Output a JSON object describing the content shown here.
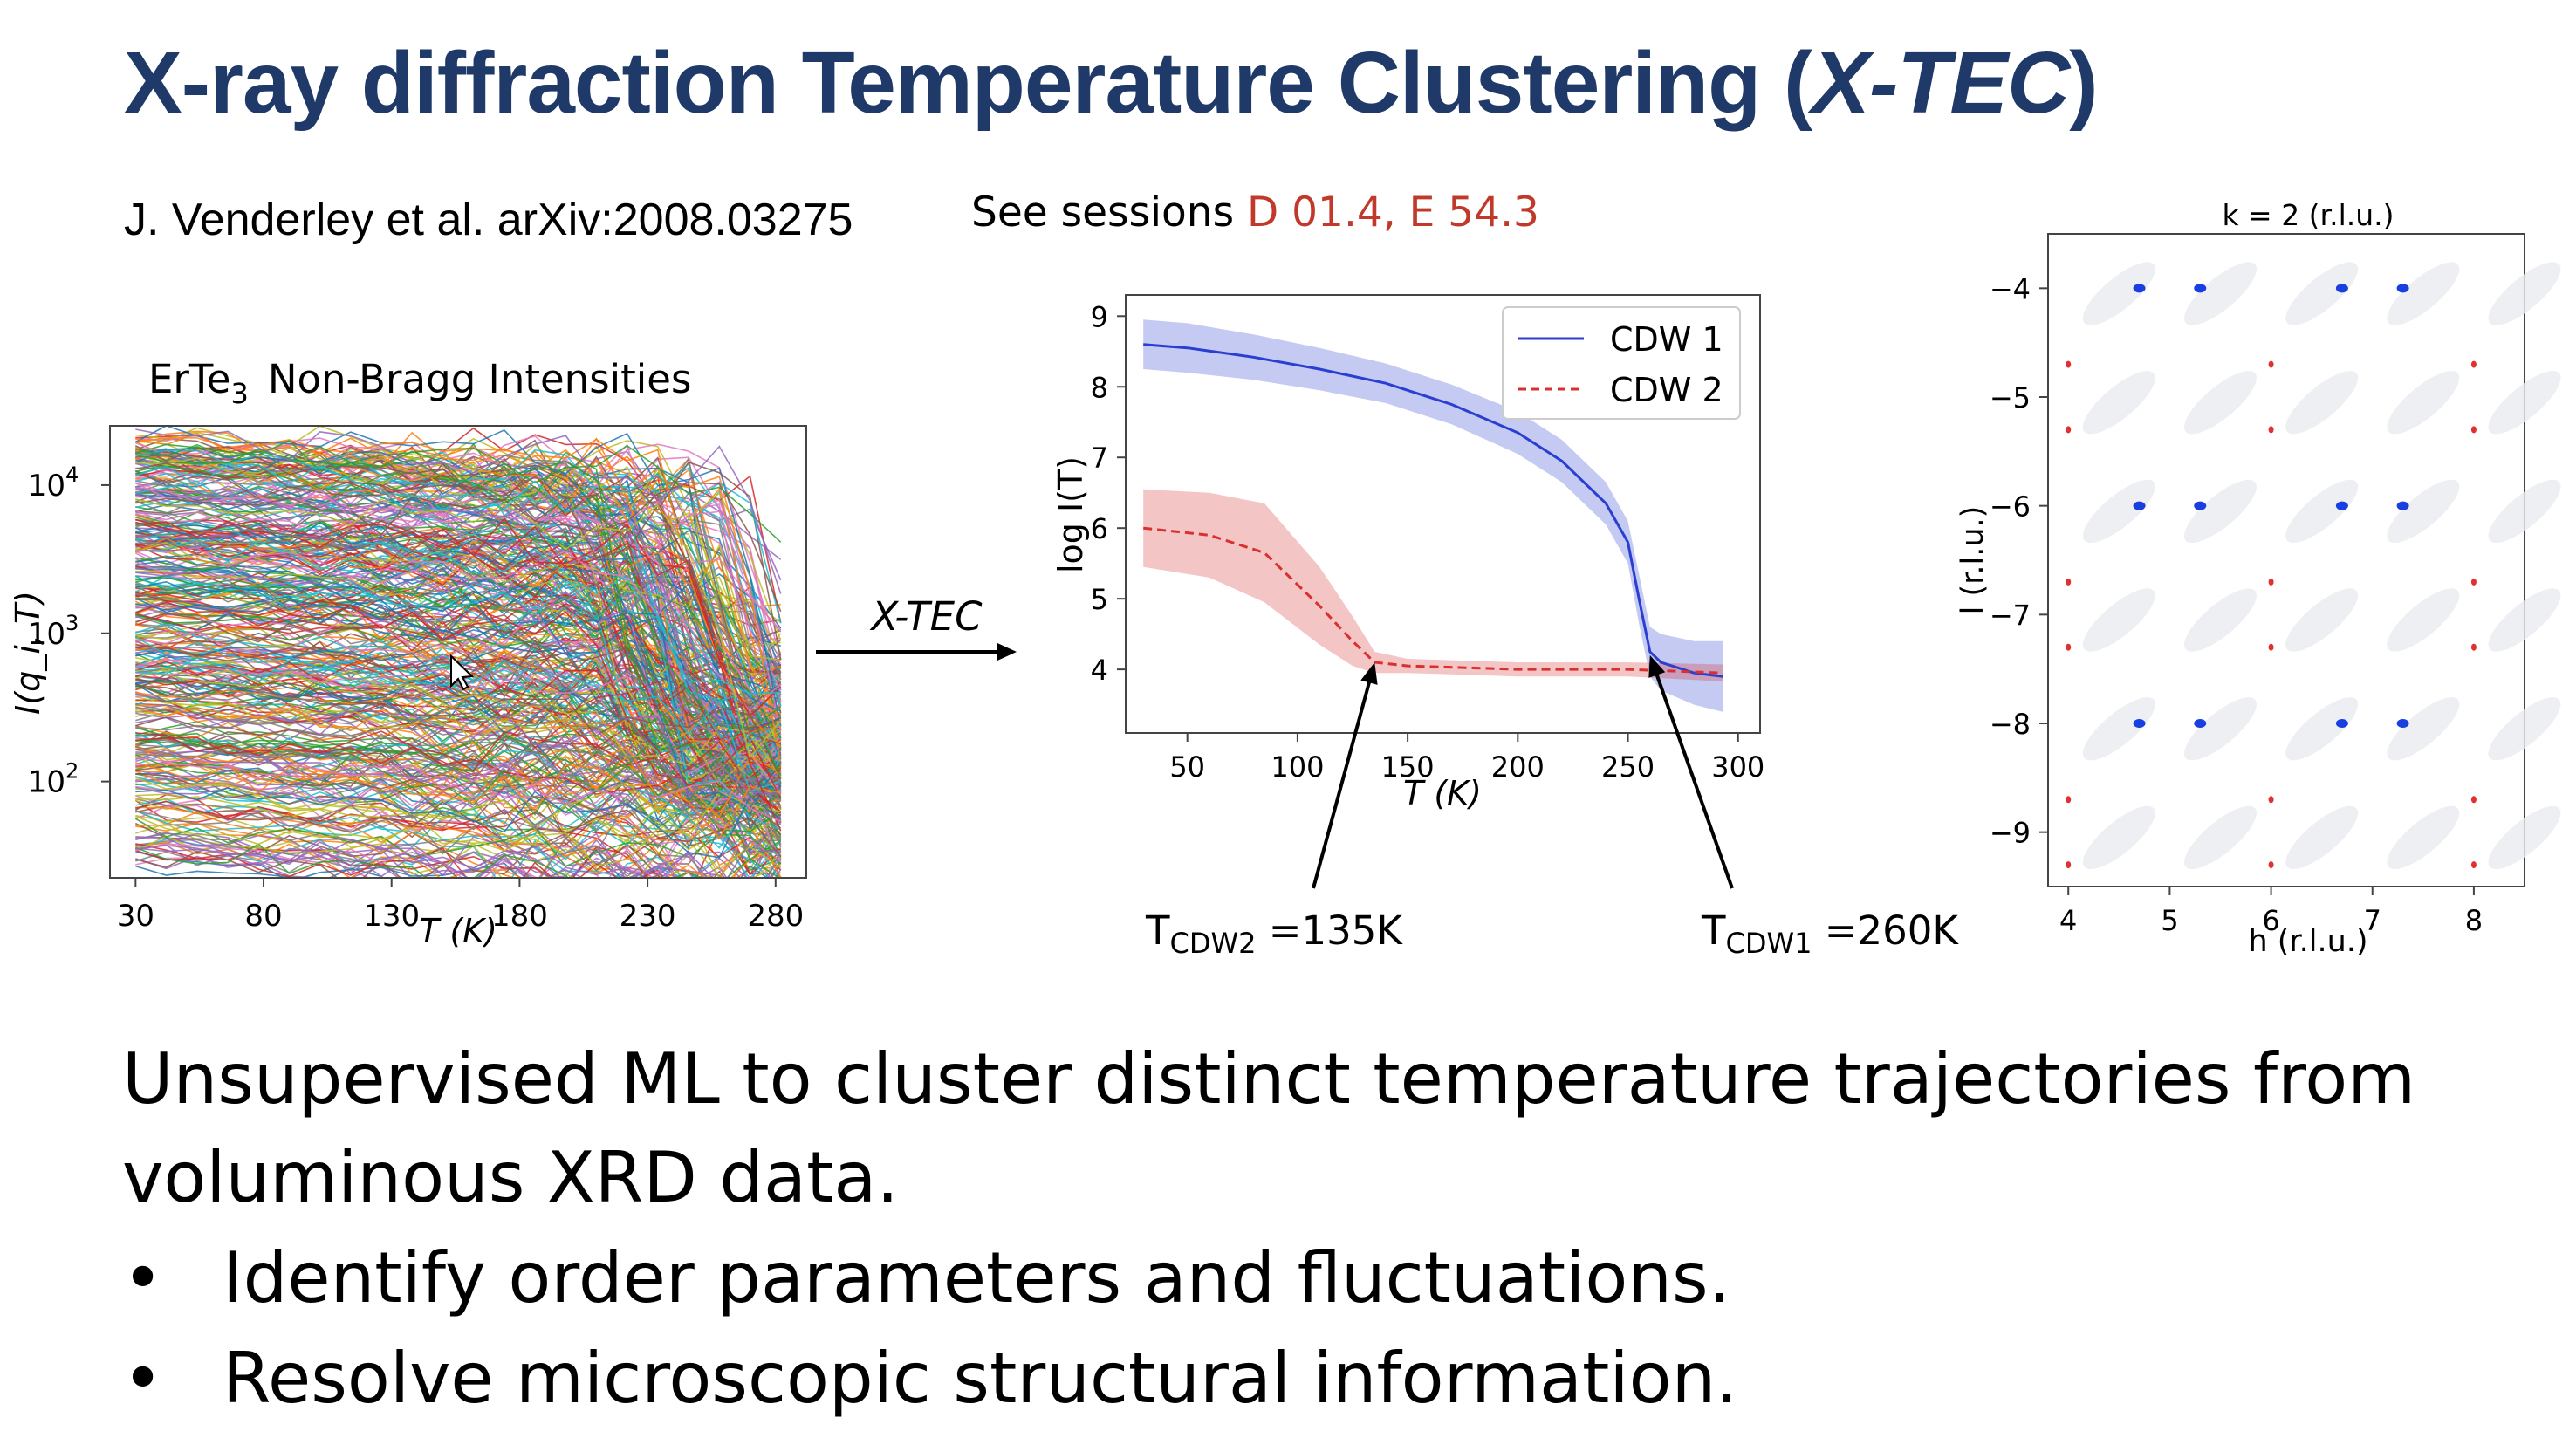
{
  "slide": {
    "title_main": "X-ray diffraction Temperature Clustering (",
    "title_italic": "X-TEC",
    "title_close": ")",
    "authors": "J. Venderley et al.  arXiv:2008.03275",
    "sessions_prefix": "See sessions ",
    "sessions_ids": "D 01.4, E 54.3",
    "arrow_label": "X-TEC",
    "paragraph_line1": "Unsupervised ML to cluster distinct temperature trajectories from",
    "paragraph_line2": "voluminous XRD data.",
    "bullets": [
      "Identify order parameters and fluctuations.",
      "Resolve microscopic structural information."
    ],
    "bullet_symbol": "•"
  },
  "chart_data": [
    {
      "type": "line",
      "title_compound": "ErTe",
      "title_subscript": "3",
      "title_rest": "Non-Bragg Intensities",
      "xlabel": "T (K)",
      "ylabel": "I(q_i, T)",
      "x_ticks": [
        "30",
        "80",
        "130",
        "180",
        "230",
        "280"
      ],
      "y_ticks": [
        "10",
        "10",
        "10"
      ],
      "y_tick_exponents": [
        "4",
        "3",
        "2"
      ],
      "xlim": [
        20,
        292
      ],
      "y_scale": "log",
      "series_note": "",
      "grid": false
    },
    {
      "type": "line",
      "xlabel": "T (K)",
      "ylabel": "log I(T)",
      "xlim": [
        22,
        310
      ],
      "ylim": [
        3.1,
        9.3
      ],
      "x_ticks": [
        "50",
        "100",
        "150",
        "200",
        "250",
        "300"
      ],
      "y_ticks": [
        "4",
        "5",
        "6",
        "7",
        "8",
        "9"
      ],
      "legend_position": "top-right",
      "grid": false,
      "series": [
        {
          "name": "CDW 1",
          "color": "#2a3fd1",
          "style": "solid",
          "x": [
            30,
            50,
            80,
            110,
            140,
            170,
            200,
            220,
            240,
            250,
            255,
            260,
            265,
            280,
            293
          ],
          "y": [
            8.6,
            8.55,
            8.42,
            8.25,
            8.05,
            7.75,
            7.35,
            6.95,
            6.35,
            5.8,
            5.0,
            4.25,
            4.1,
            3.95,
            3.9
          ],
          "band": [
            0.35,
            0.35,
            0.32,
            0.3,
            0.28,
            0.28,
            0.3,
            0.3,
            0.3,
            0.3,
            0.35,
            0.35,
            0.4,
            0.45,
            0.5
          ]
        },
        {
          "name": "CDW 2",
          "color": "#d93030",
          "style": "dashed",
          "x": [
            30,
            60,
            85,
            110,
            125,
            135,
            150,
            200,
            250,
            293
          ],
          "y": [
            6.0,
            5.9,
            5.65,
            4.9,
            4.4,
            4.1,
            4.05,
            4.0,
            4.0,
            3.95
          ],
          "band": [
            0.55,
            0.6,
            0.7,
            0.55,
            0.35,
            0.15,
            0.1,
            0.1,
            0.1,
            0.12
          ]
        }
      ],
      "annotations": [
        {
          "label_main": "T",
          "label_sub": "CDW2",
          "label_rest": " =135K",
          "x": 135,
          "y": 4.1
        },
        {
          "label_main": "T",
          "label_sub": "CDW1",
          "label_rest": " =260K",
          "x": 260,
          "y": 4.2
        }
      ]
    },
    {
      "type": "scatter",
      "title": "k = 2 (r.l.u.)",
      "xlabel": "h (r.l.u.)",
      "ylabel": "l (r.l.u.)",
      "xlim": [
        3.8,
        8.5
      ],
      "ylim": [
        -9.5,
        -3.5
      ],
      "x_ticks": [
        "4",
        "5",
        "6",
        "7",
        "8"
      ],
      "y_ticks": [
        "−4",
        "−5",
        "−6",
        "−7",
        "−8",
        "−9"
      ],
      "series": [
        {
          "color": "#1a3fe0",
          "points": [
            [
              4.7,
              -4
            ],
            [
              5.3,
              -4
            ],
            [
              6.7,
              -4
            ],
            [
              7.3,
              -4
            ],
            [
              4.7,
              -6
            ],
            [
              5.3,
              -6
            ],
            [
              6.7,
              -6
            ],
            [
              7.3,
              -6
            ],
            [
              4.7,
              -8
            ],
            [
              5.3,
              -8
            ],
            [
              6.7,
              -8
            ],
            [
              7.3,
              -8
            ]
          ]
        },
        {
          "color": "#e03030",
          "points": [
            [
              4,
              -4.7
            ],
            [
              6,
              -4.7
            ],
            [
              8,
              -4.7
            ],
            [
              4,
              -5.3
            ],
            [
              6,
              -5.3
            ],
            [
              8,
              -5.3
            ],
            [
              4,
              -6.7
            ],
            [
              6,
              -6.7
            ],
            [
              8,
              -6.7
            ],
            [
              4,
              -7.3
            ],
            [
              6,
              -7.3
            ],
            [
              8,
              -7.3
            ],
            [
              4,
              -8.7
            ],
            [
              6,
              -8.7
            ],
            [
              8,
              -8.7
            ],
            [
              4,
              -9.3
            ],
            [
              6,
              -9.3
            ],
            [
              8,
              -9.3
            ]
          ]
        }
      ]
    }
  ]
}
